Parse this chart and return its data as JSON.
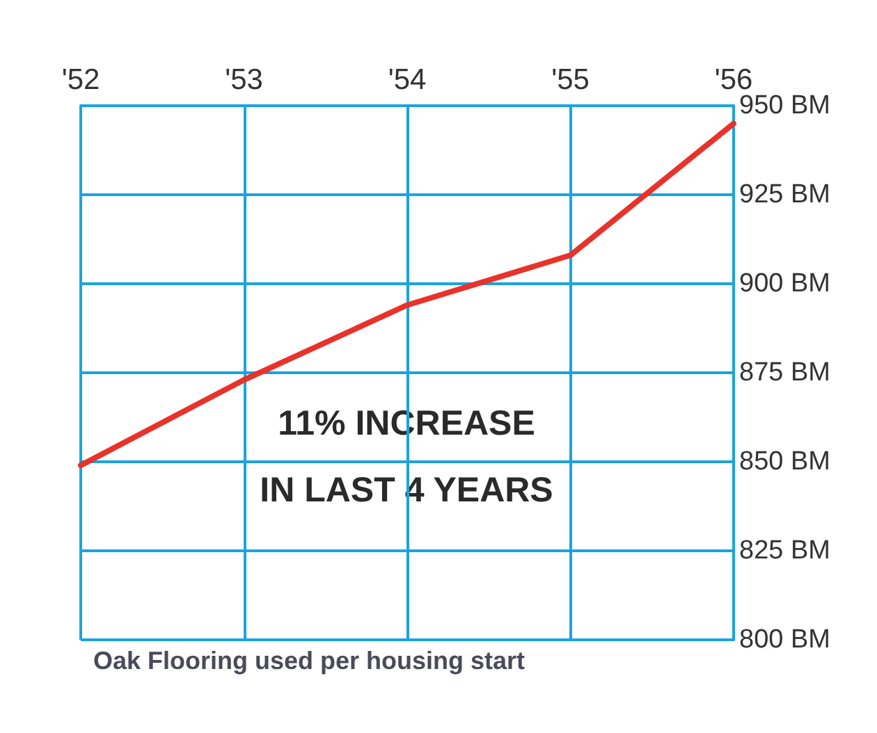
{
  "chart_data": {
    "type": "line",
    "title": "Oak Flooring used per housing start",
    "x": [
      1952,
      1953,
      1954,
      1955,
      1956
    ],
    "series": [
      {
        "color": "#e8322a",
        "values": [
          849,
          873,
          894,
          908,
          945
        ]
      }
    ],
    "xlim": [
      1952,
      1956
    ],
    "xticks": [
      {
        "value": 1952,
        "label": "'52"
      },
      {
        "value": 1953,
        "label": "'53"
      },
      {
        "value": 1954,
        "label": "'54"
      },
      {
        "value": 1955,
        "label": "'55"
      },
      {
        "value": 1956,
        "label": "'56"
      }
    ],
    "ylim": [
      800,
      950
    ],
    "yticks": [
      {
        "value": 800,
        "label": "800 BM"
      },
      {
        "value": 825,
        "label": "825 BM"
      },
      {
        "value": 850,
        "label": "850 BM"
      },
      {
        "value": 875,
        "label": "875 BM"
      },
      {
        "value": 900,
        "label": "900 BM"
      },
      {
        "value": 925,
        "label": "925 BM"
      },
      {
        "value": 950,
        "label": "950 BM"
      }
    ],
    "annotations": [
      "11% INCREASE",
      "IN LAST 4 YEARS"
    ],
    "grid": true,
    "marker": "none",
    "line_style": "solid"
  }
}
